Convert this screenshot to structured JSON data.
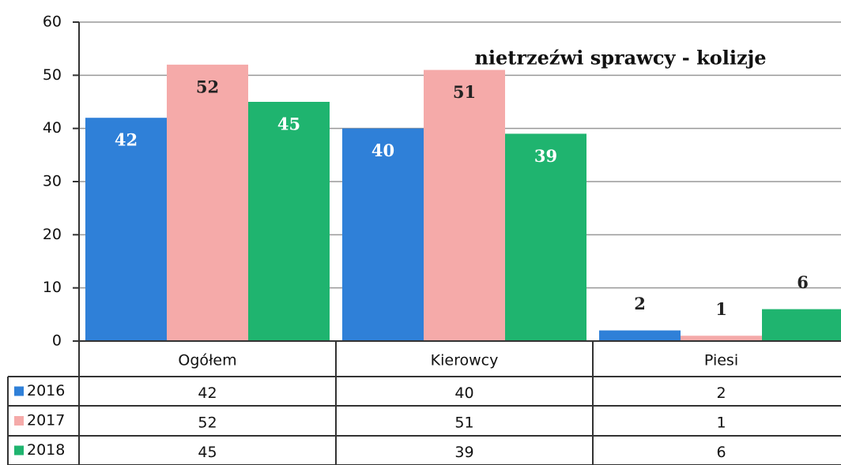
{
  "chart_data": {
    "type": "bar",
    "title": "nietrzeźwi sprawcy - kolizje",
    "categories": [
      "Ogółem",
      "Kierowcy",
      "Piesi"
    ],
    "series": [
      {
        "name": "2016",
        "color": "#2f80d8",
        "values": [
          42,
          40,
          2
        ]
      },
      {
        "name": "2017",
        "color": "#f5aaa9",
        "values": [
          52,
          51,
          1
        ]
      },
      {
        "name": "2018",
        "color": "#1fb46f",
        "values": [
          45,
          39,
          6
        ]
      }
    ],
    "ylim": [
      0,
      60
    ],
    "yticks": [
      0,
      10,
      20,
      30,
      40,
      50,
      60
    ],
    "grid": true,
    "data_table": true
  }
}
